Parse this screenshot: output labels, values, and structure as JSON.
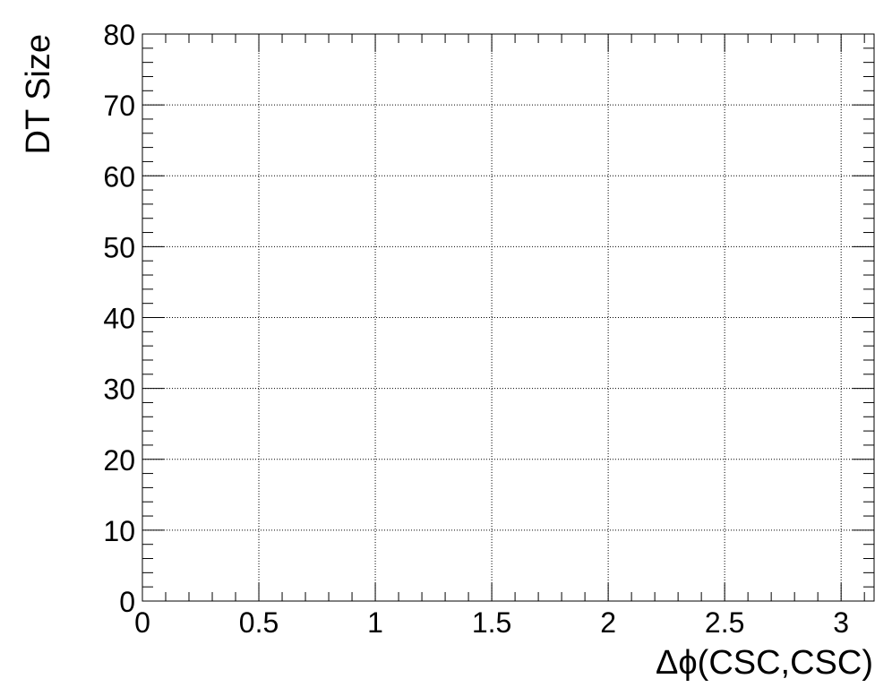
{
  "chart_data": {
    "type": "scatter",
    "title": "",
    "xlabel": "Δϕ(CSC,CSC)",
    "ylabel": "DT Size",
    "xlim": [
      0,
      3.1416
    ],
    "ylim": [
      0,
      80
    ],
    "x_ticks": [
      0,
      0.5,
      1,
      1.5,
      2,
      2.5,
      3
    ],
    "x_tick_labels": [
      "0",
      "0.5",
      "1",
      "1.5",
      "2",
      "2.5",
      "3"
    ],
    "y_ticks": [
      0,
      10,
      20,
      30,
      40,
      50,
      60,
      70,
      80
    ],
    "y_tick_labels": [
      "0",
      "10",
      "20",
      "30",
      "40",
      "50",
      "60",
      "70",
      "80"
    ],
    "grid": true,
    "series": [
      {
        "x": [],
        "y": []
      }
    ]
  }
}
